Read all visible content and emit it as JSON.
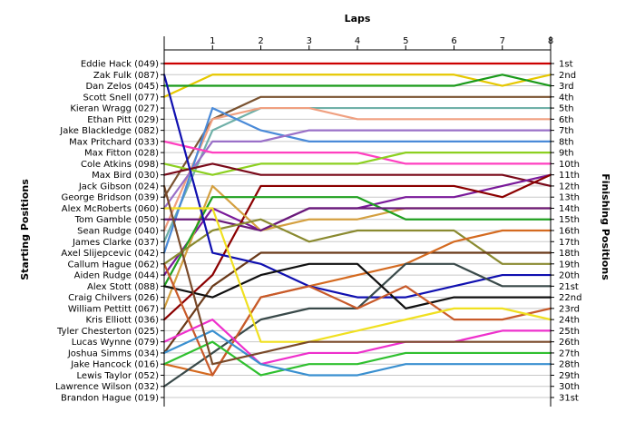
{
  "chart_data": {
    "type": "line",
    "title": "",
    "xlabel": "Laps",
    "ylabel_left": "Starting Positions",
    "ylabel_right": "Finishing Positions",
    "x": [
      0,
      1,
      2,
      3,
      4,
      5,
      6,
      7,
      8
    ],
    "x_tick_labels": [
      "1",
      "2",
      "3",
      "4",
      "5",
      "6",
      "7",
      "8"
    ],
    "ylim": [
      1,
      31
    ],
    "y_inverted": true,
    "grid": true,
    "starting_positions": [
      "Eddie Hack (049)",
      "Zak Fulk (087)",
      "Dan Zelos (045)",
      "Scott Snell (077)",
      "Kieran Wragg (027)",
      "Ethan Pitt (029)",
      "Jake Blackledge (082)",
      "Max Pritchard (033)",
      "Max Fitton (028)",
      "Cole Atkins (098)",
      "Max Bird (030)",
      "Jack Gibson (024)",
      "George Bridson (039)",
      "Alex McRoberts (060)",
      "Tom Gamble (050)",
      "Sean Rudge (040)",
      "James Clarke (037)",
      "Axel Slijepcevic (042)",
      "Callum Hague (062)",
      "Aiden Rudge (044)",
      "Alex Stott (088)",
      "Craig Chilvers (026)",
      "William Pettitt (067)",
      "Kris Elliott (036)",
      "Tyler Chesterton (025)",
      "Lucas Wynne (079)",
      "Joshua Simms (034)",
      "Jake Hancock (016)",
      "Lewis Taylor (052)",
      "Lawrence Wilson (032)",
      "Brandon Hague (019)"
    ],
    "finishing_positions": [
      "1st",
      "2nd",
      "3rd",
      "4th",
      "5th",
      "6th",
      "7th",
      "8th",
      "9th",
      "10th",
      "11th",
      "12th",
      "13th",
      "14th",
      "15th",
      "16th",
      "17th",
      "18th",
      "19th",
      "20th",
      "21st",
      "22nd",
      "23rd",
      "24th",
      "25th",
      "26th",
      "27th",
      "28th",
      "29th",
      "30th",
      "31st"
    ],
    "series": [
      {
        "color": "#cc0000",
        "values": [
          1,
          1,
          1,
          1,
          1,
          1,
          1,
          1,
          1
        ]
      },
      {
        "color": "#e6c800",
        "values": [
          4,
          2,
          2,
          2,
          2,
          2,
          2,
          3,
          2
        ]
      },
      {
        "color": "#1a9a1a",
        "values": [
          3,
          3,
          3,
          3,
          3,
          3,
          3,
          2,
          3
        ]
      },
      {
        "color": "#7a5230",
        "values": [
          13,
          6,
          4,
          4,
          4,
          4,
          4,
          4,
          4
        ]
      },
      {
        "color": "#6fb0a8",
        "values": [
          17,
          7,
          5,
          5,
          5,
          5,
          5,
          5,
          5
        ]
      },
      {
        "color": "#f0a080",
        "values": [
          16,
          6,
          5,
          5,
          6,
          6,
          6,
          6,
          6
        ]
      },
      {
        "color": "#4a8ad8",
        "values": [
          18,
          5,
          7,
          8,
          8,
          8,
          8,
          8,
          8
        ]
      },
      {
        "color": "#9a70c8",
        "values": [
          14,
          8,
          8,
          7,
          7,
          7,
          7,
          7,
          7
        ]
      },
      {
        "color": "#ff40c0",
        "values": [
          8,
          9,
          9,
          9,
          9,
          10,
          10,
          10,
          10
        ]
      },
      {
        "color": "#8cd020",
        "values": [
          10,
          11,
          10,
          10,
          10,
          9,
          9,
          9,
          9
        ]
      },
      {
        "color": "#7a0a1a",
        "values": [
          11,
          10,
          11,
          11,
          11,
          11,
          11,
          11,
          12
        ]
      },
      {
        "color": "#7a1a9a",
        "values": [
          20,
          14,
          16,
          14,
          14,
          13,
          13,
          12,
          11
        ]
      },
      {
        "color": "#8b0000",
        "values": [
          24,
          20,
          12,
          12,
          12,
          12,
          12,
          13,
          11
        ]
      },
      {
        "color": "#d4a040",
        "values": [
          23,
          12,
          16,
          15,
          15,
          14,
          14,
          14,
          14
        ]
      },
      {
        "color": "#20a020",
        "values": [
          21,
          13,
          13,
          13,
          13,
          15,
          15,
          15,
          15
        ]
      },
      {
        "color": "#6a1a7a",
        "values": [
          15,
          15,
          16,
          14,
          14,
          14,
          14,
          14,
          14
        ]
      },
      {
        "color": "#8a8a30",
        "values": [
          19,
          16,
          15,
          17,
          16,
          16,
          16,
          19,
          19
        ]
      },
      {
        "color": "#6a3a1a",
        "values": [
          27,
          21,
          18,
          18,
          18,
          18,
          18,
          18,
          18
        ]
      },
      {
        "color": "#d46a20",
        "values": [
          28,
          29,
          22,
          21,
          20,
          19,
          17,
          16,
          16
        ]
      },
      {
        "color": "#1010b0",
        "values": [
          2,
          18,
          19,
          21,
          22,
          22,
          21,
          20,
          20
        ]
      },
      {
        "color": "#3a4a4a",
        "values": [
          30,
          27,
          24,
          23,
          23,
          19,
          19,
          21,
          21
        ]
      },
      {
        "color": "#101010",
        "values": [
          21,
          22,
          20,
          19,
          19,
          23,
          22,
          22,
          22
        ]
      },
      {
        "color": "#c85a2a",
        "values": [
          19,
          29,
          22,
          21,
          23,
          21,
          24,
          24,
          23
        ]
      },
      {
        "color": "#f0e020",
        "values": [
          14,
          14,
          26,
          26,
          25,
          24,
          23,
          23,
          24
        ]
      },
      {
        "color": "#ee30cc",
        "values": [
          26,
          24,
          28,
          27,
          27,
          26,
          26,
          25,
          25
        ]
      },
      {
        "color": "#30c030",
        "values": [
          28,
          26,
          29,
          28,
          28,
          27,
          27,
          27,
          27
        ]
      },
      {
        "color": "#3a90d0",
        "values": [
          27,
          25,
          28,
          29,
          29,
          28,
          28,
          28,
          28
        ]
      },
      {
        "color": "#7a4a2a",
        "values": [
          12,
          28,
          27,
          26,
          26,
          26,
          26,
          26,
          26
        ]
      }
    ]
  }
}
